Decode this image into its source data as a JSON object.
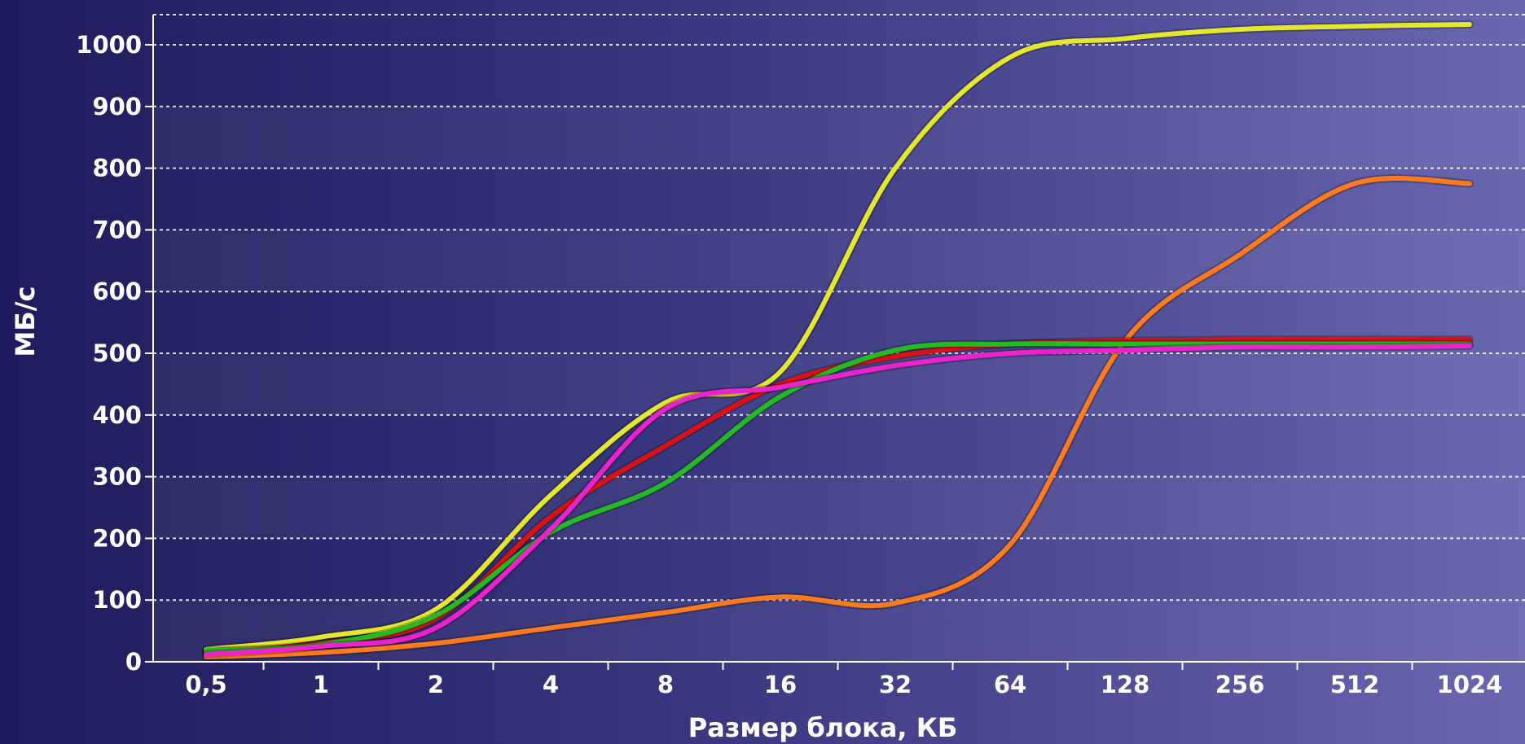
{
  "chart_data": {
    "type": "line",
    "title": "",
    "xlabel": "Размер блока, КБ",
    "ylabel": "МБ/с",
    "x_scale": "log2",
    "x": [
      0.5,
      1,
      2,
      4,
      8,
      16,
      32,
      64,
      128,
      256,
      512,
      1024
    ],
    "x_tick_labels": [
      "0,5",
      "1",
      "2",
      "4",
      "8",
      "16",
      "32",
      "64",
      "128",
      "256",
      "512",
      "1024"
    ],
    "y_ticks": [
      0,
      100,
      200,
      300,
      400,
      500,
      600,
      700,
      800,
      900,
      1000
    ],
    "ylim": [
      0,
      1000
    ],
    "grid": true,
    "legend": false,
    "series": [
      {
        "color": "#e6e62a",
        "values": [
          20,
          40,
          85,
          270,
          420,
          470,
          800,
          980,
          1010,
          1025,
          1030,
          1033
        ]
      },
      {
        "color": "#ff7a1a",
        "values": [
          8,
          15,
          30,
          55,
          80,
          105,
          95,
          190,
          520,
          660,
          775,
          775
        ]
      },
      {
        "color": "#dd1111",
        "values": [
          15,
          30,
          70,
          235,
          350,
          450,
          495,
          515,
          520,
          522,
          522,
          522
        ]
      },
      {
        "color": "#22bb22",
        "values": [
          18,
          28,
          75,
          210,
          290,
          430,
          505,
          515,
          515,
          515,
          515,
          515
        ]
      },
      {
        "color": "#ee22cc",
        "values": [
          12,
          25,
          55,
          215,
          410,
          445,
          480,
          500,
          505,
          510,
          510,
          512
        ]
      }
    ]
  }
}
